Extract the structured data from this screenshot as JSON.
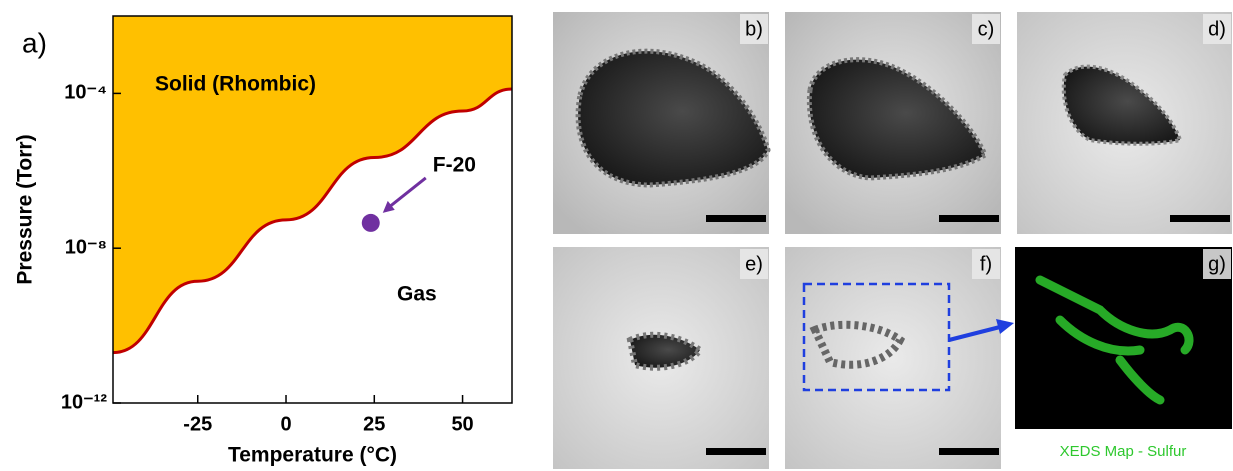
{
  "chart_data": {
    "type": "area-line",
    "panel_label": "a)",
    "x_label": "Temperature (°C)",
    "y_label": "Pressure (Torr)",
    "xlim": [
      -49,
      64
    ],
    "xticks": [
      -25,
      0,
      25,
      50
    ],
    "ylim": [
      1e-12,
      0.01
    ],
    "log_y": true,
    "yticks": [
      {
        "value": 1e-12,
        "label": "10⁻¹²"
      },
      {
        "value": 1e-08,
        "label": "10⁻⁸"
      },
      {
        "value": 0.0001,
        "label": "10⁻⁴"
      }
    ],
    "series": [
      {
        "x": [
          -49,
          -25,
          0,
          25,
          50,
          64
        ],
        "values": [
          2e-11,
          1.4e-09,
          5.4e-08,
          2.2e-06,
          3.5e-05,
          0.00013
        ],
        "color": "#c00000",
        "fill": "#ffc000"
      }
    ],
    "point": {
      "label": "F-20",
      "x": 24,
      "value": 4.5e-08,
      "color": "#7030a0"
    },
    "annotations": [
      "Solid (Rhombic)",
      "Gas"
    ]
  },
  "panels": {
    "labels": [
      "b)",
      "c)",
      "d)",
      "e)",
      "f)",
      "g)"
    ],
    "caption": "XEDS Map - Sulfur"
  }
}
